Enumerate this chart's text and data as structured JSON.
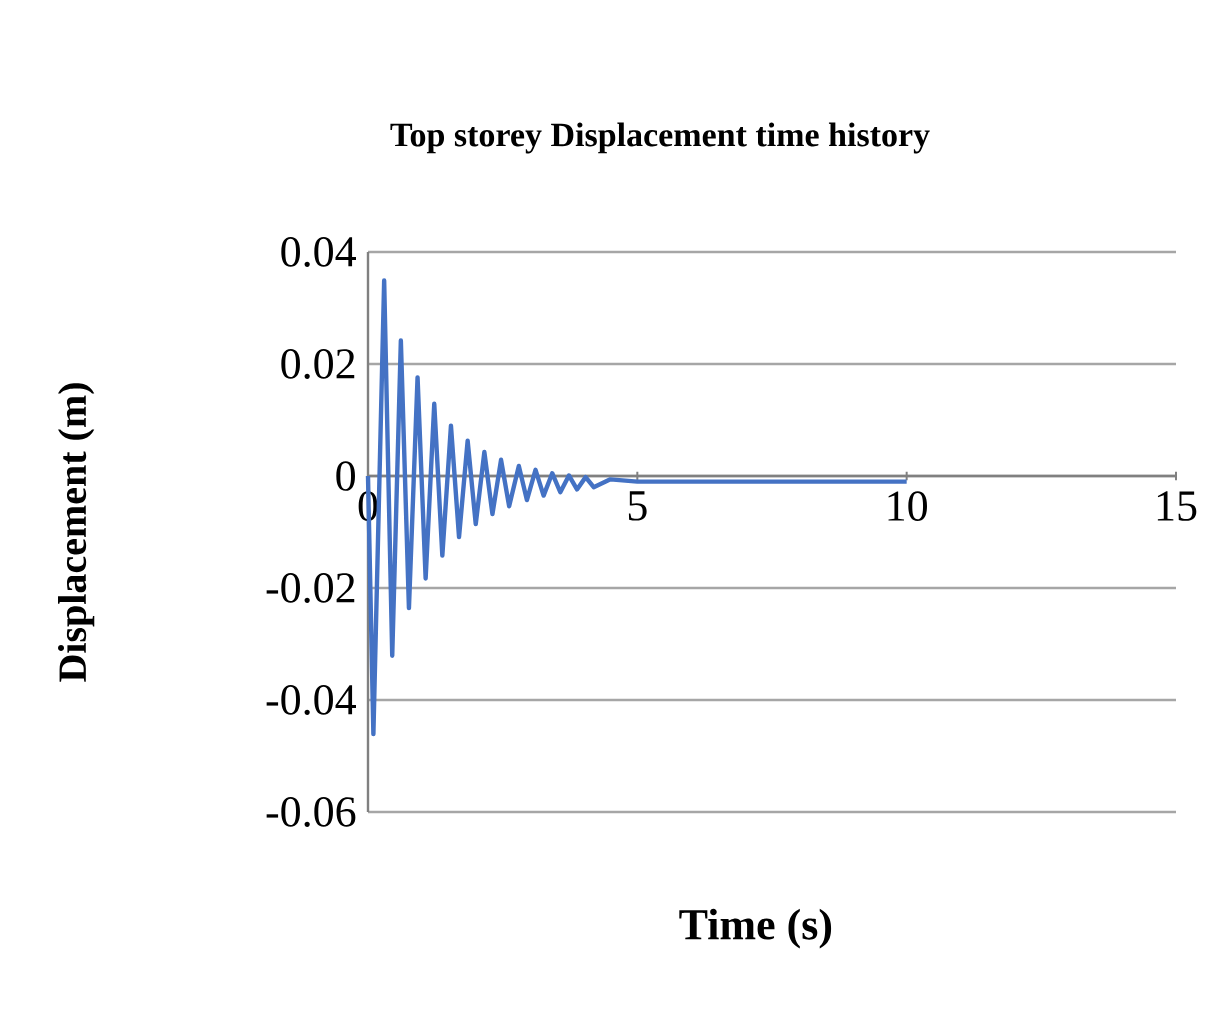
{
  "chart_data": {
    "type": "line",
    "title": "Top storey Displacement time history",
    "xlabel": "Time (s)",
    "ylabel": "Displacement (m)",
    "xlim": [
      0,
      15
    ],
    "xticks": [
      0,
      5,
      10,
      15
    ],
    "ylim": [
      -0.06,
      0.04
    ],
    "yticks": [
      -0.06,
      -0.04,
      -0.02,
      0,
      0.02,
      0.04
    ],
    "grid": "y",
    "marker": "none",
    "line_style": "solid",
    "series": [
      {
        "color": "#4472c4",
        "x": [
          0,
          0.1,
          0.3,
          0.45,
          0.61,
          0.76,
          0.92,
          1.07,
          1.23,
          1.38,
          1.54,
          1.69,
          1.85,
          2.0,
          2.16,
          2.31,
          2.47,
          2.62,
          2.8,
          2.95,
          3.11,
          3.26,
          3.42,
          3.57,
          3.73,
          3.88,
          4.04,
          4.19,
          4.5,
          5,
          6,
          10
        ],
        "values": [
          0,
          -0.0461,
          0.0349,
          -0.0321,
          0.0242,
          -0.0236,
          0.0176,
          -0.0183,
          0.0129,
          -0.0142,
          0.009,
          -0.0109,
          0.0063,
          -0.0086,
          0.0043,
          -0.0068,
          0.0029,
          -0.0054,
          0.0018,
          -0.0043,
          0.0011,
          -0.0035,
          0.0005,
          -0.0029,
          0.0001,
          -0.0024,
          -0.0002,
          -0.002,
          -0.0006,
          -0.001,
          -0.001,
          -0.001
        ]
      }
    ]
  }
}
